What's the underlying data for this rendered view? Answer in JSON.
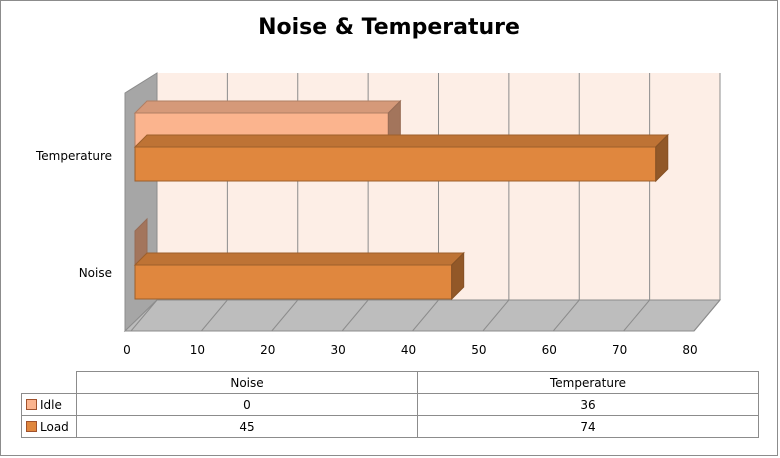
{
  "chart_data": {
    "type": "bar",
    "orientation": "horizontal",
    "style": "3d",
    "title": "Noise & Temperature",
    "xlabel": "",
    "ylabel": "",
    "categories": [
      "Noise",
      "Temperature"
    ],
    "series": [
      {
        "name": "Idle",
        "values": [
          0,
          36
        ],
        "color": "#fbb48e"
      },
      {
        "name": "Load",
        "values": [
          45,
          74
        ],
        "color": "#e0873e"
      }
    ],
    "xlim": [
      0,
      80
    ],
    "xticks": [
      "0",
      "10",
      "20",
      "30",
      "40",
      "50",
      "60",
      "70",
      "80"
    ],
    "grid": true,
    "background_color": "#fdeee6",
    "legend": "data-table"
  },
  "table": {
    "headers": [
      "Noise",
      "Temperature"
    ],
    "rows": [
      {
        "label": "Idle",
        "values": [
          "0",
          "36"
        ]
      },
      {
        "label": "Load",
        "values": [
          "45",
          "74"
        ]
      }
    ]
  }
}
